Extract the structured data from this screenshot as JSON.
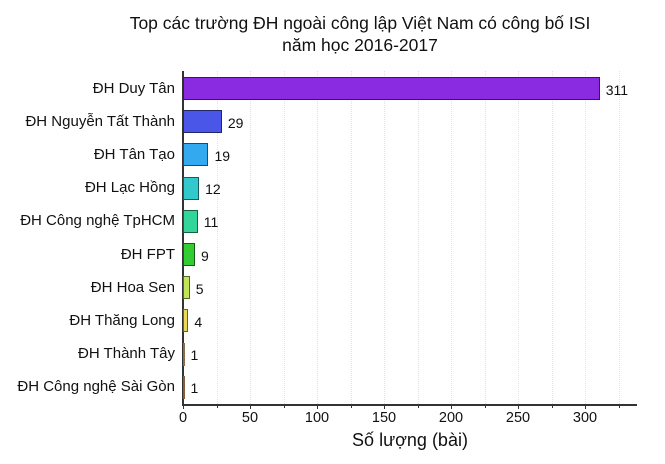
{
  "chart_data": {
    "type": "bar",
    "orientation": "horizontal",
    "title": "Top các trường ĐH ngoài công lập Việt Nam có công bố ISI năm học 2016-2017",
    "title_lines": [
      "Top các trường ĐH ngoài công lập Việt Nam có công bố ISI",
      "năm học 2016-2017"
    ],
    "xlabel": "Số lượng (bài)",
    "ylabel": "",
    "xlim": [
      0,
      340
    ],
    "xticks": [
      0,
      50,
      100,
      150,
      200,
      250,
      300
    ],
    "xtick_labels": [
      "0",
      "50",
      "100",
      "150",
      "200",
      "250",
      "300"
    ],
    "minor_xticks": [
      25,
      75,
      125,
      175,
      225,
      275,
      325
    ],
    "grid": "vertical dotted (faint)",
    "legend": "none",
    "data_labels": true,
    "categories": [
      "ĐH Duy Tân",
      "ĐH Nguyễn Tất Thành",
      "ĐH Tân Tạo",
      "ĐH Lạc Hồng",
      "ĐH Công nghệ TpHCM",
      "ĐH FPT",
      "ĐH Hoa Sen",
      "ĐH Thăng Long",
      "ĐH Thành Tây",
      "ĐH Công nghệ Sài Gòn"
    ],
    "values": [
      311,
      29,
      19,
      12,
      11,
      9,
      5,
      4,
      1,
      1
    ],
    "value_labels": [
      "311",
      "29",
      "19",
      "12",
      "11",
      "9",
      "5",
      "4",
      "1",
      "1"
    ],
    "colors": [
      "#8a2be2",
      "#4a56e8",
      "#33aaf0",
      "#33c9cc",
      "#33d69a",
      "#33cc33",
      "#c3e55a",
      "#e8d95a",
      "#8b6b4a",
      "#8b5a3c"
    ]
  }
}
